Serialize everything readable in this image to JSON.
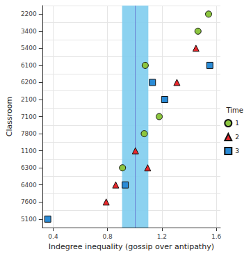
{
  "chart_data": {
    "type": "scatter",
    "orientation": "horizontal",
    "x_label": "Indegree inequality (gossip over antipathy)",
    "y_label": "Classroom",
    "categories": [
      "2200",
      "3400",
      "5400",
      "6100",
      "6200",
      "2100",
      "7100",
      "7800",
      "1100",
      "6300",
      "6400",
      "7600",
      "5100"
    ],
    "series": [
      {
        "name": "1",
        "color": "#8cc63f",
        "marker": "circle",
        "values": [
          1.543,
          1.465,
          null,
          1.077,
          null,
          null,
          1.18,
          1.07,
          null,
          0.91,
          null,
          null,
          null
        ]
      },
      {
        "name": "2",
        "color": "#e8262a",
        "marker": "triangle",
        "values": [
          null,
          null,
          1.45,
          null,
          1.31,
          null,
          null,
          null,
          1.005,
          1.095,
          0.86,
          0.79,
          null
        ]
      },
      {
        "name": "3",
        "color": "#2a8bd6",
        "marker": "square",
        "values": [
          null,
          null,
          null,
          1.552,
          1.13,
          1.22,
          null,
          null,
          null,
          null,
          0.93,
          null,
          0.36
        ]
      }
    ],
    "reference_line": 1.0,
    "band": [
      0.907,
      1.1
    ],
    "xlim": [
      0.32,
      1.63
    ],
    "xticks": [
      0.4,
      0.8,
      1.2,
      1.6
    ],
    "grid": true,
    "legend": "right",
    "legend_title": "Time"
  }
}
